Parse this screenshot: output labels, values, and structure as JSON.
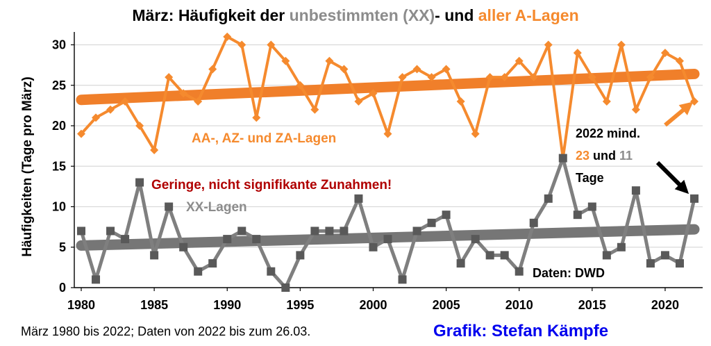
{
  "title": {
    "part1": "März: Häufigkeit der ",
    "part2": "unbestimmten (XX)",
    "part3": "- und ",
    "part4": "aller A-Lagen"
  },
  "colors": {
    "a_series": "#f58a2e",
    "a_trend": "#f07f2a",
    "xx_series": "#7f7f7f",
    "xx_marker": "#595959",
    "xx_trend": "#767676",
    "red_text": "#b00000",
    "blue_text": "#0000ee",
    "grid": "#d9d9d9"
  },
  "chart_data": {
    "type": "line",
    "xlabel": "",
    "ylabel": "Häufigkeiten (Tage pro März)",
    "xlim": [
      1980,
      2022
    ],
    "ylim": [
      0,
      30
    ],
    "x_ticks": [
      1980,
      1985,
      1990,
      1995,
      2000,
      2005,
      2010,
      2015,
      2020
    ],
    "y_ticks": [
      0,
      5,
      10,
      15,
      20,
      25,
      30
    ],
    "grid": "horizontal",
    "x": [
      1980,
      1981,
      1982,
      1983,
      1984,
      1985,
      1986,
      1987,
      1988,
      1989,
      1990,
      1991,
      1992,
      1993,
      1994,
      1995,
      1996,
      1997,
      1998,
      1999,
      2000,
      2001,
      2002,
      2003,
      2004,
      2005,
      2006,
      2007,
      2008,
      2009,
      2010,
      2011,
      2012,
      2013,
      2014,
      2015,
      2016,
      2017,
      2018,
      2019,
      2020,
      2021,
      2022
    ],
    "series": [
      {
        "values": [
          19,
          21,
          22,
          23,
          20,
          17,
          26,
          24,
          23,
          27,
          31,
          30,
          21,
          30,
          28,
          25,
          22,
          28,
          27,
          23,
          24,
          19,
          26,
          27,
          26,
          27,
          23,
          19,
          26,
          26,
          28,
          26,
          30,
          16,
          29,
          26,
          23,
          30,
          22,
          26,
          29,
          28,
          23
        ],
        "trend": [
          23.2,
          26.4
        ]
      },
      {
        "values": [
          7,
          1,
          7,
          6,
          13,
          4,
          10,
          5,
          2,
          3,
          6,
          7,
          6,
          2,
          0,
          4,
          7,
          7,
          7,
          11,
          5,
          6,
          1,
          7,
          8,
          9,
          3,
          6,
          4,
          4,
          2,
          8,
          11,
          16,
          9,
          10,
          4,
          5,
          12,
          3,
          4,
          3,
          11
        ],
        "trend": [
          5.2,
          7.2
        ]
      }
    ],
    "annotations": {
      "a_label": "AA-, AZ- und ZA-Lagen",
      "xx_label": "XX-Lagen",
      "note_red": "Geringe, nicht signifikante Zunahmen!",
      "note_2022_line1": "2022 mind.",
      "note_2022_a": "23",
      "note_2022_und": " und ",
      "note_2022_xx": "11",
      "note_2022_line3": "Tage",
      "source": "Daten: DWD"
    }
  },
  "footer": {
    "range_note": "März 1980 bis 2022; Daten von 2022 bis zum 26.03.",
    "credit": "Grafik: Stefan Kämpfe"
  }
}
